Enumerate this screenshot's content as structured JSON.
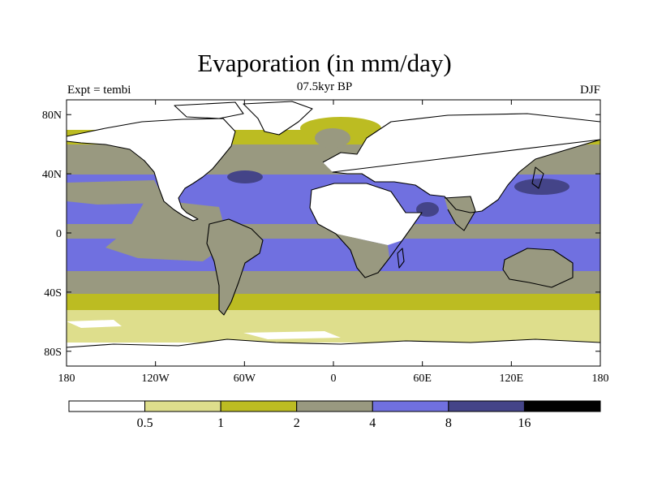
{
  "title": "Evaporation (in mm/day)",
  "subtitle": "07.5kyr BP",
  "experiment_label": "Expt = tembi",
  "season_label": "DJF",
  "map": {
    "projection": "cylindrical equidistant",
    "lon_range": [
      -180,
      180
    ],
    "lat_range": [
      -90,
      90
    ],
    "lon_ticks": [
      {
        "value": -180,
        "label": "180"
      },
      {
        "value": -120,
        "label": "120W"
      },
      {
        "value": -60,
        "label": "60W"
      },
      {
        "value": 0,
        "label": "0"
      },
      {
        "value": 60,
        "label": "60E"
      },
      {
        "value": 120,
        "label": "120E"
      },
      {
        "value": 180,
        "label": "180"
      }
    ],
    "lat_ticks": [
      {
        "value": 80,
        "label": "80N"
      },
      {
        "value": 40,
        "label": "40N"
      },
      {
        "value": 0,
        "label": "0"
      },
      {
        "value": -40,
        "label": "40S"
      },
      {
        "value": -80,
        "label": "80S"
      }
    ]
  },
  "colorbar": {
    "bins": [
      {
        "color": "#ffffff"
      },
      {
        "color": "#dede8c"
      },
      {
        "color": "#bcbc22"
      },
      {
        "color": "#999980"
      },
      {
        "color": "#7070e0"
      },
      {
        "color": "#444488"
      },
      {
        "color": "#000000"
      }
    ],
    "labels": [
      "0.5",
      "1",
      "2",
      "4",
      "8",
      "16"
    ]
  },
  "colors": {
    "band_white": "#ffffff",
    "band_light": "#dede8c",
    "band_olive": "#bcbc22",
    "band_gray": "#999980",
    "band_blue": "#7070e0",
    "band_dark": "#444488",
    "coast": "#000000"
  }
}
